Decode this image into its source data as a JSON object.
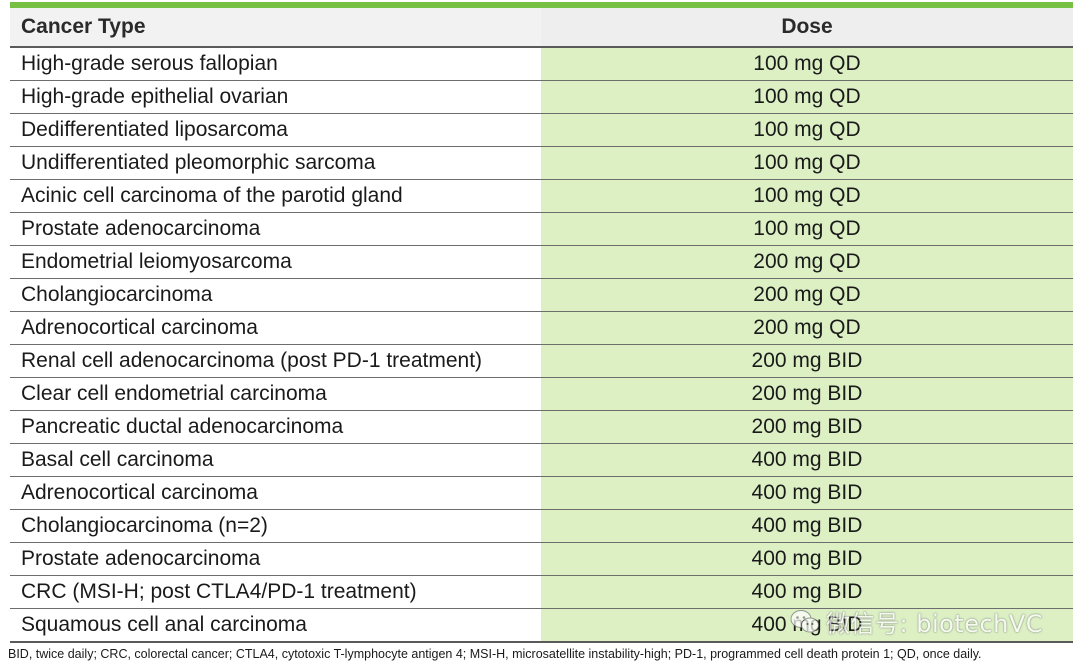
{
  "table": {
    "headers": {
      "cancer_type": "Cancer Type",
      "dose": "Dose"
    },
    "rows": [
      {
        "cancer_type": "High-grade serous fallopian",
        "dose": "100 mg QD"
      },
      {
        "cancer_type": "High-grade epithelial ovarian",
        "dose": "100 mg QD"
      },
      {
        "cancer_type": "Dedifferentiated liposarcoma",
        "dose": "100 mg QD"
      },
      {
        "cancer_type": "Undifferentiated pleomorphic sarcoma",
        "dose": "100 mg QD"
      },
      {
        "cancer_type": "Acinic cell carcinoma of the parotid gland",
        "dose": "100 mg QD"
      },
      {
        "cancer_type": "Prostate adenocarcinoma",
        "dose": "100 mg QD"
      },
      {
        "cancer_type": "Endometrial leiomyosarcoma",
        "dose": "200 mg QD"
      },
      {
        "cancer_type": "Cholangiocarcinoma",
        "dose": "200 mg QD"
      },
      {
        "cancer_type": "Adrenocortical carcinoma",
        "dose": "200 mg QD"
      },
      {
        "cancer_type": "Renal cell adenocarcinoma (post PD-1 treatment)",
        "dose": "200 mg BID"
      },
      {
        "cancer_type": "Clear cell endometrial carcinoma",
        "dose": "200 mg BID"
      },
      {
        "cancer_type": "Pancreatic ductal adenocarcinoma",
        "dose": "200 mg BID"
      },
      {
        "cancer_type": "Basal cell carcinoma",
        "dose": "400 mg BID"
      },
      {
        "cancer_type": "Adrenocortical carcinoma",
        "dose": "400 mg BID"
      },
      {
        "cancer_type": "Cholangiocarcinoma (n=2)",
        "dose": "400 mg BID"
      },
      {
        "cancer_type": "Prostate adenocarcinoma",
        "dose": "400 mg BID"
      },
      {
        "cancer_type": "CRC (MSI-H; post CTLA4/PD-1 treatment)",
        "dose": "400 mg BID"
      },
      {
        "cancer_type": "Squamous cell anal carcinoma",
        "dose": "400 mg BID"
      }
    ]
  },
  "footnote": "BID, twice daily; CRC, colorectal cancer; CTLA4, cytotoxic T-lymphocyte antigen 4; MSI-H, microsatellite instability-high; PD-1, programmed cell death protein 1; QD, once daily.",
  "watermark": {
    "text": "微信号: biotechVC",
    "icon": "wechat-icon"
  },
  "colors": {
    "accent": "#76c043",
    "dose_fill": "#dcf0c4"
  }
}
